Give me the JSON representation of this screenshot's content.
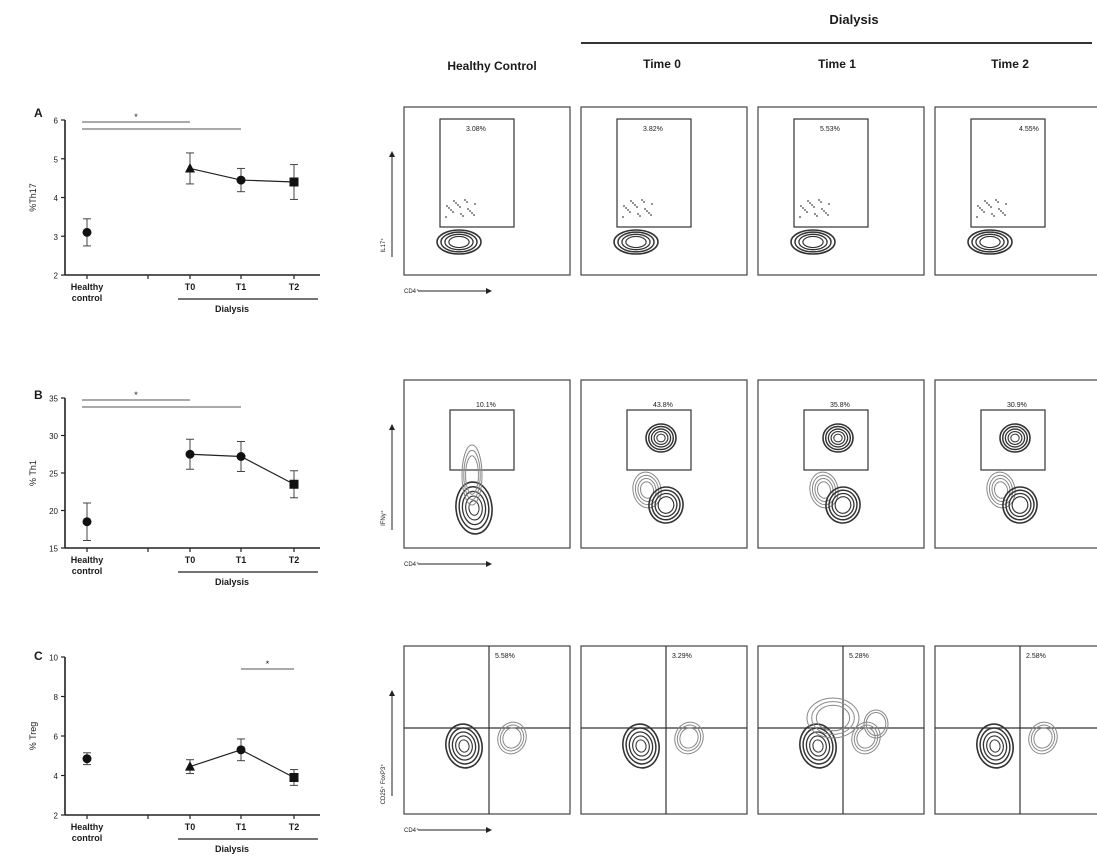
{
  "header": {
    "dialysis": "Dialysis",
    "columns": [
      "Healthy Control",
      "Time 0",
      "Time 1",
      "Time 2"
    ]
  },
  "axes": {
    "category_labels": [
      "T0",
      "T1",
      "T2"
    ],
    "healthy_line1": "Healthy",
    "healthy_line2": "control",
    "dialysis_label": "Dialysis",
    "significance": "*"
  },
  "chart_data": [
    {
      "type": "scatter",
      "panel": "A",
      "ylabel": "%Th17",
      "ylim": [
        2,
        6
      ],
      "yticks": [
        2,
        3,
        4,
        5,
        6
      ],
      "categories": [
        "Healthy control",
        "T0",
        "T1",
        "T2"
      ],
      "values": [
        3.1,
        4.75,
        4.45,
        4.4
      ],
      "errors": [
        0.35,
        0.4,
        0.3,
        0.45
      ],
      "markers": [
        "circle",
        "triangle",
        "circle",
        "square"
      ],
      "connected": [
        1,
        2,
        3
      ],
      "significance": [
        {
          "from": 0,
          "to": 1,
          "label": "*"
        },
        {
          "from": 0,
          "to": 2,
          "label": ""
        }
      ]
    },
    {
      "type": "scatter",
      "panel": "B",
      "ylabel": "% Th1",
      "ylim": [
        15,
        35
      ],
      "yticks": [
        15,
        20,
        25,
        30,
        35
      ],
      "categories": [
        "Healthy control",
        "T0",
        "T1",
        "T2"
      ],
      "values": [
        18.5,
        27.5,
        27.2,
        23.5
      ],
      "errors": [
        2.5,
        2.0,
        2.0,
        1.8
      ],
      "markers": [
        "circle",
        "circle",
        "circle",
        "square"
      ],
      "connected": [
        1,
        2,
        3
      ],
      "significance": [
        {
          "from": 0,
          "to": 1,
          "label": "*"
        },
        {
          "from": 0,
          "to": 2,
          "label": ""
        }
      ]
    },
    {
      "type": "scatter",
      "panel": "C",
      "ylabel": "% Treg",
      "ylim": [
        2,
        10
      ],
      "yticks": [
        2,
        4,
        6,
        8,
        10
      ],
      "categories": [
        "Healthy control",
        "T0",
        "T1",
        "T2"
      ],
      "values": [
        4.85,
        4.45,
        5.3,
        3.9
      ],
      "errors": [
        0.3,
        0.35,
        0.55,
        0.4
      ],
      "markers": [
        "circle",
        "triangle",
        "circle",
        "square"
      ],
      "connected": [
        1,
        2,
        3
      ],
      "significance": [
        {
          "from": 2,
          "to": 3,
          "label": "*"
        }
      ]
    }
  ],
  "flow": {
    "rows": [
      {
        "xlabel": "CD4⁺",
        "ylabel": "IL17⁺",
        "percents": [
          "3.08%",
          "3.82%",
          "5.53%",
          "4.55%"
        ]
      },
      {
        "xlabel": "CD4⁺",
        "ylabel": "IFNγ⁺",
        "percents": [
          "10.1%",
          "43.8%",
          "35.8%",
          "30.9%"
        ]
      },
      {
        "xlabel": "CD4⁺",
        "ylabel": "CD25⁺ FoxP3⁺",
        "percents": [
          "5.58%",
          "3.29%",
          "5.28%",
          "2.58%"
        ]
      }
    ]
  },
  "panel_letters": [
    "A",
    "B",
    "C"
  ]
}
